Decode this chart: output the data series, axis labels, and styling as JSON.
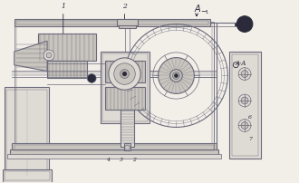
{
  "bg_color": "#f2efe9",
  "line_color": "#6a6a7a",
  "dark_color": "#2a2a3a",
  "mid_color": "#9a9aaa",
  "fill_light": "#dedad4",
  "fill_mid": "#c8c4be",
  "fill_dark": "#b0ada8",
  "title_label": "A—1",
  "section_label": "A-A",
  "figsize": [
    3.3,
    2.02
  ],
  "dpi": 100
}
